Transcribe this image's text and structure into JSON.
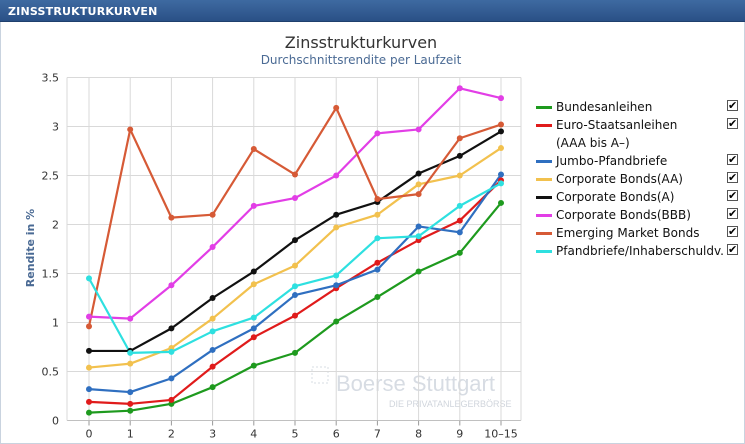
{
  "header": {
    "title": "ZINSSTRUKTURKURVEN"
  },
  "watermark": {
    "line1": "Boerse Stuttgart",
    "line2": "DIE PRIVATANLEGERBÖRSE"
  },
  "chart_data": {
    "type": "line",
    "title": "Zinsstrukturkurven",
    "subtitle": "Durchschnittsrendite per Laufzeit",
    "xlabel": "",
    "ylabel": "Rendite in %",
    "categories": [
      "0",
      "1",
      "2",
      "3",
      "4",
      "5",
      "6",
      "7",
      "8",
      "9",
      "10–15"
    ],
    "ylim": [
      0,
      3.5
    ],
    "yticks": [
      "0",
      "0.5",
      "1",
      "1.5",
      "2",
      "2.5",
      "3",
      "3.5"
    ],
    "grid": true,
    "legend_position": "right",
    "series": [
      {
        "name": "Bundesanleihen",
        "color": "#1e9a1e",
        "checked": true,
        "values": [
          0.08,
          0.1,
          0.17,
          0.34,
          0.56,
          0.69,
          1.01,
          1.26,
          1.52,
          1.71,
          2.22
        ]
      },
      {
        "name": "Euro-Staatsanleihen\n(AAA bis A–)",
        "color": "#e01b1b",
        "checked": true,
        "values": [
          0.19,
          0.17,
          0.21,
          0.55,
          0.85,
          1.07,
          1.35,
          1.61,
          1.84,
          2.04,
          2.45
        ]
      },
      {
        "name": "Jumbo-Pfandbriefe",
        "color": "#2f6fc0",
        "checked": true,
        "values": [
          0.32,
          0.29,
          0.43,
          0.72,
          0.94,
          1.28,
          1.38,
          1.54,
          1.98,
          1.92,
          2.51
        ]
      },
      {
        "name": "Corporate Bonds(AA)",
        "color": "#f2c14e",
        "checked": true,
        "values": [
          0.54,
          0.58,
          0.74,
          1.04,
          1.39,
          1.58,
          1.97,
          2.1,
          2.41,
          2.5,
          2.78
        ]
      },
      {
        "name": "Corporate Bonds(A)",
        "color": "#111111",
        "checked": true,
        "values": [
          0.71,
          0.71,
          0.94,
          1.25,
          1.52,
          1.84,
          2.1,
          2.23,
          2.52,
          2.7,
          2.95
        ]
      },
      {
        "name": "Corporate Bonds(BBB)",
        "color": "#e23ee6",
        "checked": true,
        "values": [
          1.06,
          1.04,
          1.38,
          1.77,
          2.19,
          2.27,
          2.5,
          2.93,
          2.97,
          3.39,
          3.29
        ]
      },
      {
        "name": "Emerging Market Bonds",
        "color": "#d65a36",
        "checked": true,
        "values": [
          0.96,
          2.97,
          2.07,
          2.1,
          2.77,
          2.51,
          3.19,
          2.26,
          2.31,
          2.88,
          3.02
        ]
      },
      {
        "name": "Pfandbriefe/Inhaberschuldv.",
        "color": "#2ee0e0",
        "checked": true,
        "values": [
          1.45,
          0.69,
          0.7,
          0.91,
          1.05,
          1.37,
          1.48,
          1.86,
          1.88,
          2.19,
          2.42
        ]
      }
    ]
  }
}
